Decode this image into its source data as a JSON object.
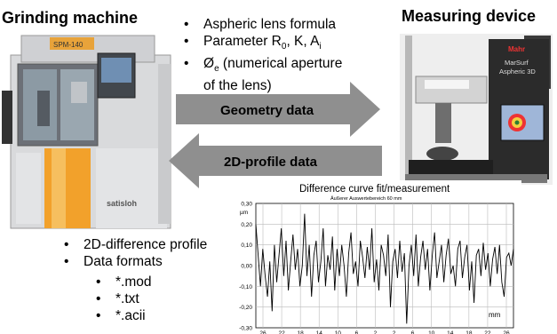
{
  "left_title": "Grinding machine",
  "right_title": "Measuring device",
  "top_bullets": [
    {
      "text": "Aspheric lens formula"
    },
    {
      "text": "Parameter R",
      "sub": "0",
      "after": ", K, A",
      "sub2": "i"
    },
    {
      "text": "Ø",
      "sub": "e",
      "after": " (numerical aperture"
    },
    {
      "text": "of the lens)",
      "continuation": true
    }
  ],
  "arrows": {
    "right": "Geometry data",
    "left": "2D-profile data"
  },
  "machine_labels": {
    "grinder_model": "SPM-140",
    "grinder_brand": "satisloh",
    "device_brand": "Mahr",
    "device_name_line1": "MarSurf",
    "device_name_line2": "Aspheric 3D"
  },
  "bottom_bullets": [
    "2D-difference profile",
    "Data formats"
  ],
  "sub_bullets": [
    "*.mod",
    "*.txt",
    "*.acii"
  ],
  "chart_data": {
    "type": "line",
    "title": "Difference curve  fit/measurement",
    "subtitle": "Äußerer Auswertebereich 60 mm",
    "ylabel": "µm",
    "xlabel": "mm",
    "ylim": [
      -0.3,
      0.3
    ],
    "yticks": [
      "0,30",
      "0,20",
      "0,10",
      "0,00",
      "-0,10",
      "-0,20",
      "-0,30"
    ],
    "xticks": [
      "26",
      "22",
      "18",
      "14",
      "10",
      "6",
      "2",
      "2",
      "6",
      "10",
      "14",
      "18",
      "22",
      "26"
    ],
    "x_range": [
      -28,
      28
    ],
    "grid": true,
    "series_y": [
      0.2,
      0.05,
      -0.1,
      0.08,
      -0.05,
      -0.15,
      0.02,
      -0.22,
      0.1,
      -0.08,
      0.05,
      0.18,
      -0.05,
      0.12,
      -0.12,
      0.02,
      0.15,
      -0.02,
      0.08,
      -0.1,
      0.0,
      0.25,
      -0.05,
      0.1,
      -0.15,
      0.05,
      0.12,
      -0.08,
      0.02,
      0.18,
      -0.1,
      0.05,
      -0.02,
      0.14,
      -0.12,
      0.08,
      -0.05,
      0.1,
      0.0,
      -0.15,
      0.06,
      0.16,
      -0.04,
      0.02,
      -0.1,
      0.12,
      0.04,
      -0.06,
      0.09,
      -0.02,
      0.18,
      -0.08,
      0.03,
      -0.12,
      0.1,
      0.05,
      -0.05,
      0.15,
      -0.2,
      0.02,
      0.08,
      -0.06,
      0.12,
      -0.03,
      0.06,
      -0.28,
      0.0,
      0.1,
      -0.05,
      0.15,
      -0.1,
      0.04,
      0.12,
      -0.02,
      0.08,
      -0.12,
      0.05,
      0.16,
      -0.06,
      0.02,
      0.1,
      -0.08,
      0.05,
      0.13,
      -0.04,
      0.0,
      -0.1,
      0.08,
      0.12,
      -0.06,
      0.04,
      0.1,
      -0.12,
      0.02,
      -0.18,
      0.05,
      0.08,
      -0.05,
      0.11,
      -0.02,
      0.06,
      -0.1,
      0.03,
      0.09,
      -0.04,
      0.1,
      -0.08,
      -0.15,
      0.04,
      0.06,
      0.0,
      0.08
    ]
  }
}
